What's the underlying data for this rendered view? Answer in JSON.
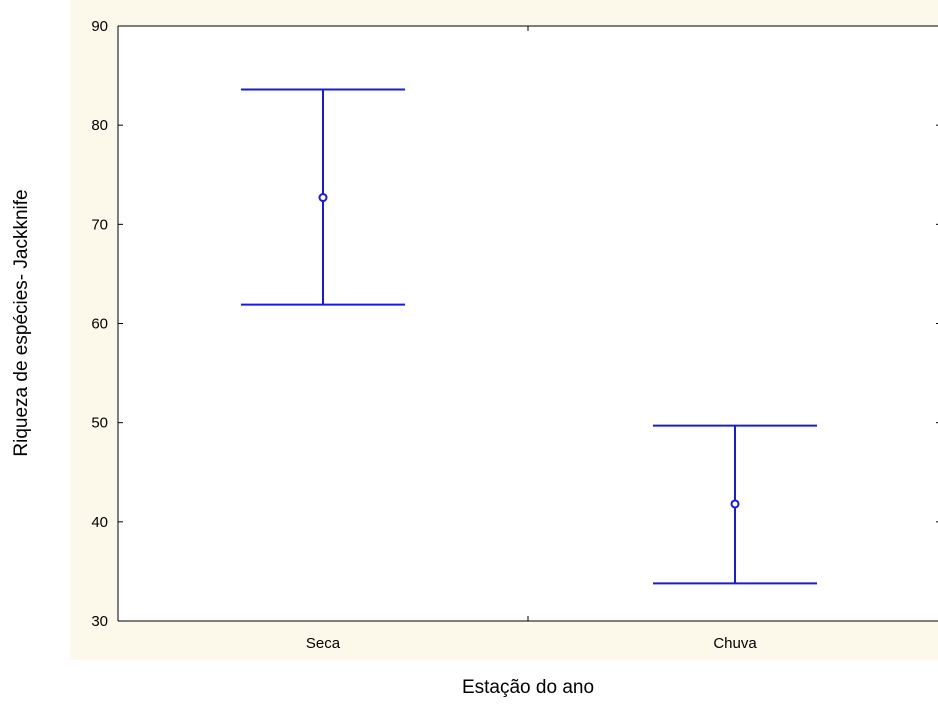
{
  "chart_data": {
    "type": "errorbar",
    "title": "",
    "xlabel": "Estação do ano",
    "ylabel": "Riqueza de espécies- Jackknife",
    "categories": [
      "Seca",
      "Chuva"
    ],
    "series": [
      {
        "values": [
          72.7,
          41.8
        ],
        "lower": [
          61.9,
          33.8
        ],
        "upper": [
          83.6,
          49.7
        ]
      }
    ],
    "ylim": [
      30,
      90
    ],
    "yticks": [
      30,
      40,
      50,
      60,
      70,
      80,
      90
    ],
    "grid": false,
    "legend": "none"
  },
  "colors": {
    "series": "#1a1adc",
    "axis": "#000000",
    "plot_background": "#ffffff",
    "outer_background": "#fdf9ea"
  }
}
